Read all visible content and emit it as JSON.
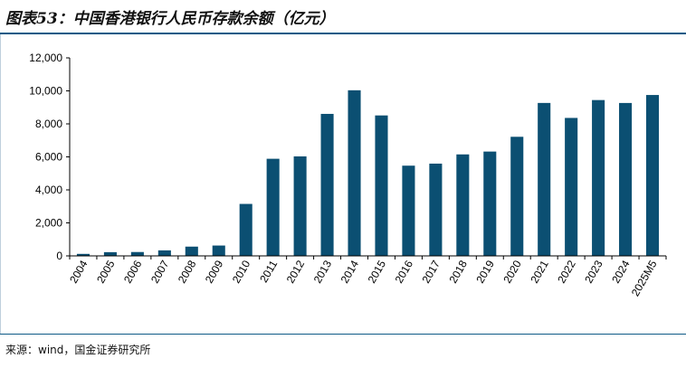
{
  "title": "图表53：中国香港银行人民币存款余额（亿元）",
  "source": "来源：wind，国金证券研究所",
  "colors": {
    "bar": "#0b4f72",
    "rule": "#0e5a86"
  },
  "chart_data": {
    "type": "bar",
    "title": "中国香港银行人民币存款余额（亿元）",
    "xlabel": "",
    "ylabel": "",
    "ylim": [
      0,
      12000
    ],
    "yticks": [
      0,
      2000,
      4000,
      6000,
      8000,
      10000,
      12000
    ],
    "ytick_labels": [
      "0",
      "2,000",
      "4,000",
      "6,000",
      "8,000",
      "10,000",
      "12,000"
    ],
    "grid": false,
    "categories": [
      "2004",
      "2005",
      "2006",
      "2007",
      "2008",
      "2009",
      "2010",
      "2011",
      "2012",
      "2013",
      "2014",
      "2015",
      "2016",
      "2017",
      "2018",
      "2019",
      "2020",
      "2021",
      "2022",
      "2023",
      "2024",
      "2025M5"
    ],
    "values": [
      121,
      226,
      234,
      334,
      561,
      627,
      3149,
      5885,
      6030,
      8605,
      10036,
      8511,
      5467,
      5591,
      6150,
      6322,
      7217,
      9268,
      8360,
      9443,
      9266,
      9750
    ]
  }
}
